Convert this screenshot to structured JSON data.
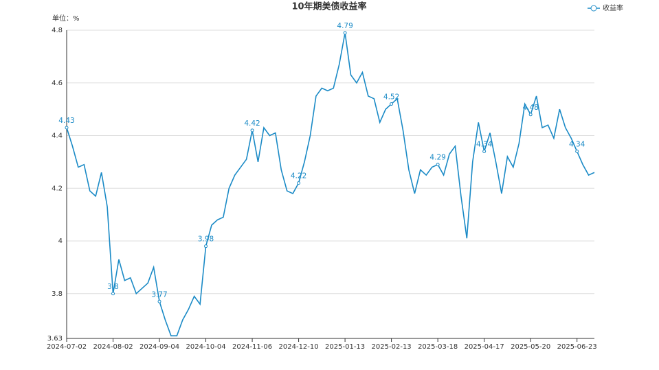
{
  "chart_data": {
    "type": "line",
    "title": "10年期美债收益率",
    "unit_label": "单位：%",
    "categories": [
      "2024-07-02",
      null,
      null,
      null,
      null,
      null,
      null,
      null,
      "2024-08-02",
      null,
      null,
      null,
      null,
      null,
      null,
      null,
      "2024-09-04",
      null,
      null,
      null,
      null,
      null,
      null,
      null,
      "2024-10-04",
      null,
      null,
      null,
      null,
      null,
      null,
      null,
      "2024-11-06",
      null,
      null,
      null,
      null,
      null,
      null,
      null,
      "2024-12-10",
      null,
      null,
      null,
      null,
      null,
      null,
      null,
      "2025-01-13",
      null,
      null,
      null,
      null,
      null,
      null,
      null,
      "2025-02-13",
      null,
      null,
      null,
      null,
      null,
      null,
      null,
      "2025-03-18",
      null,
      null,
      null,
      null,
      null,
      null,
      null,
      "2025-04-17",
      null,
      null,
      null,
      null,
      null,
      null,
      null,
      "2025-05-20",
      null,
      null,
      null,
      null,
      null,
      null,
      null,
      "2025-06-23",
      null,
      null,
      null
    ],
    "series": [
      {
        "name": "收益率",
        "color": "#1a8ac6",
        "values": [
          4.43,
          4.36,
          4.28,
          4.29,
          4.19,
          4.17,
          4.26,
          4.13,
          3.8,
          3.93,
          3.85,
          3.86,
          3.8,
          3.82,
          3.84,
          3.9,
          3.77,
          3.7,
          3.64,
          3.64,
          3.7,
          3.74,
          3.79,
          3.76,
          3.98,
          4.06,
          4.08,
          4.09,
          4.2,
          4.25,
          4.28,
          4.31,
          4.42,
          4.3,
          4.43,
          4.4,
          4.41,
          4.27,
          4.19,
          4.18,
          4.22,
          4.3,
          4.4,
          4.55,
          4.58,
          4.57,
          4.58,
          4.67,
          4.79,
          4.63,
          4.6,
          4.64,
          4.55,
          4.54,
          4.45,
          4.5,
          4.52,
          4.54,
          4.42,
          4.27,
          4.18,
          4.27,
          4.25,
          4.28,
          4.29,
          4.25,
          4.33,
          4.36,
          4.17,
          4.01,
          4.3,
          4.45,
          4.34,
          4.41,
          4.3,
          4.18,
          4.32,
          4.28,
          4.37,
          4.52,
          4.48,
          4.55,
          4.43,
          4.44,
          4.39,
          4.5,
          4.43,
          4.39,
          4.34,
          4.29,
          4.25,
          4.26
        ]
      }
    ],
    "ylim": [
      3.63,
      4.8
    ],
    "yticks": [
      3.63,
      3.8,
      4,
      4.2,
      4.4,
      4.6,
      4.8
    ],
    "grid": true,
    "legend": "top-right"
  }
}
